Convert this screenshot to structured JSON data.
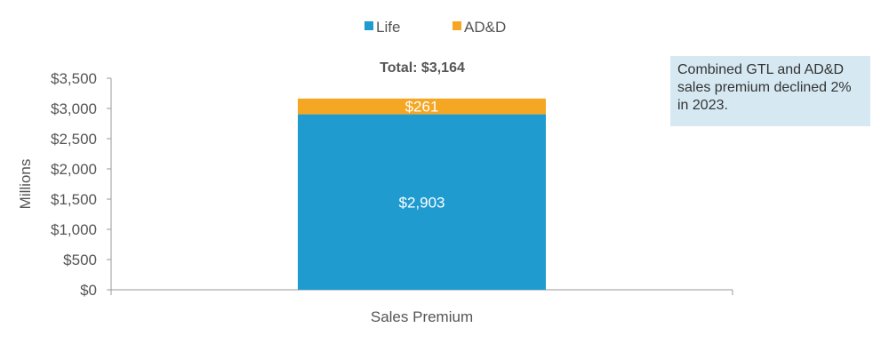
{
  "chart_data": {
    "type": "bar",
    "stacked": true,
    "categories": [
      "Sales Premium"
    ],
    "series": [
      {
        "name": "Life",
        "values": [
          2903
        ],
        "labels": [
          "$2,903"
        ],
        "color": "#1f9bcf"
      },
      {
        "name": "AD&D",
        "values": [
          261
        ],
        "labels": [
          "$261"
        ],
        "color": "#f5a623"
      }
    ],
    "total_label": "Total: $3,164",
    "ylabel": "Millions",
    "xlabel": "",
    "ylim": [
      0,
      3500
    ],
    "yticks": [
      0,
      500,
      1000,
      1500,
      2000,
      2500,
      3000,
      3500
    ],
    "ytick_labels": [
      "$0",
      "$500",
      "$1,000",
      "$1,500",
      "$2,000",
      "$2,500",
      "$3,000",
      "$3,500"
    ],
    "legend_position": "top",
    "grid": false
  },
  "note": {
    "text": "Combined GTL and AD&D sales premium declined 2% in 2023."
  }
}
